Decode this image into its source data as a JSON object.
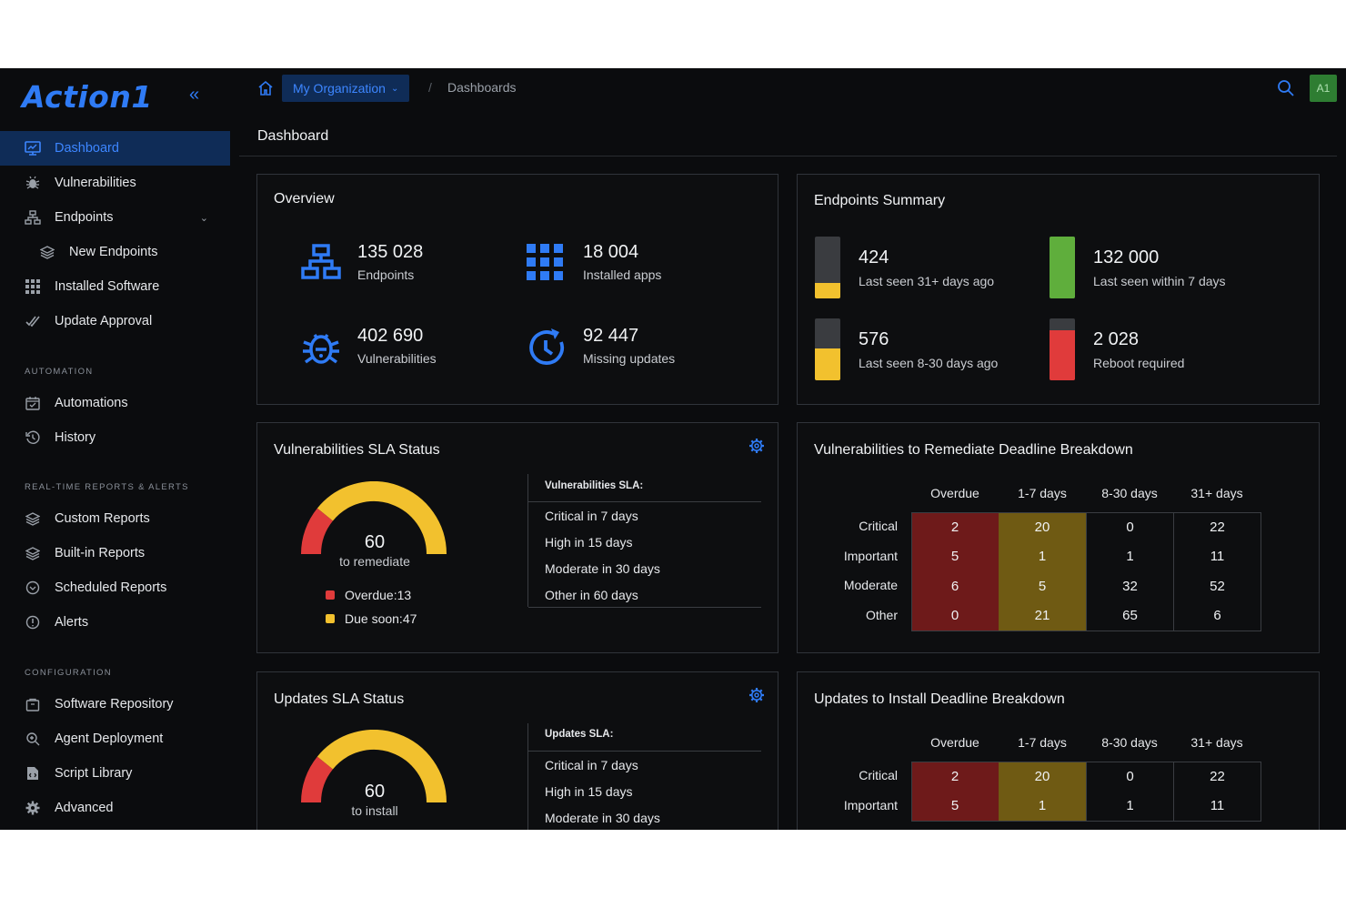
{
  "brand": {
    "logo_text": "Action1"
  },
  "topbar": {
    "org_label": "My Organization",
    "separator": "/",
    "current_page": "Dashboards",
    "avatar_initials": "A1"
  },
  "page_title": "Dashboard",
  "sidebar": {
    "items": [
      {
        "label": "Dashboard",
        "icon": "monitor-icon",
        "active": true
      },
      {
        "label": "Vulnerabilities",
        "icon": "bug-icon"
      },
      {
        "label": "Endpoints",
        "icon": "network-icon",
        "expandable": true
      },
      {
        "label": "New Endpoints",
        "icon": "layers-icon",
        "sub": true
      },
      {
        "label": "Installed Software",
        "icon": "grid-icon"
      },
      {
        "label": "Update Approval",
        "icon": "double-check-icon"
      }
    ],
    "automation_header": "AUTOMATION",
    "automation_items": [
      {
        "label": "Automations",
        "icon": "calendar-icon"
      },
      {
        "label": "History",
        "icon": "history-icon"
      }
    ],
    "reports_header": "REAL-TIME REPORTS & ALERTS",
    "reports_items": [
      {
        "label": "Custom Reports",
        "icon": "layers-icon"
      },
      {
        "label": "Built-in Reports",
        "icon": "layers-icon"
      },
      {
        "label": "Scheduled Reports",
        "icon": "clock-icon"
      },
      {
        "label": "Alerts",
        "icon": "alert-icon"
      }
    ],
    "config_header": "CONFIGURATION",
    "config_items": [
      {
        "label": "Software Repository",
        "icon": "bag-icon"
      },
      {
        "label": "Agent Deployment",
        "icon": "search-plus-icon"
      },
      {
        "label": "Script Library",
        "icon": "script-icon"
      },
      {
        "label": "Advanced",
        "icon": "gear-icon"
      }
    ]
  },
  "overview": {
    "title": "Overview",
    "metrics": [
      {
        "value": "135 028",
        "label": "Endpoints",
        "icon": "network-icon"
      },
      {
        "value": "18 004",
        "label": "Installed apps",
        "icon": "grid-icon"
      },
      {
        "value": "402 690",
        "label": "Vulnerabilities",
        "icon": "bug-icon"
      },
      {
        "value": "92 447",
        "label": "Missing updates",
        "icon": "refresh-clock-icon"
      }
    ]
  },
  "endpoints_summary": {
    "title": "Endpoints Summary",
    "items": [
      {
        "value": "424",
        "label": "Last seen 31+ days ago",
        "fill": 0.25,
        "color": "#f2c12e"
      },
      {
        "value": "132 000",
        "label": "Last seen within 7 days",
        "fill": 1.0,
        "color": "#5fae3c"
      },
      {
        "value": "576",
        "label": "Last seen 8-30 days ago",
        "fill": 0.52,
        "color": "#f2c12e"
      },
      {
        "value": "2 028",
        "label": "Reboot required",
        "fill": 0.81,
        "color": "#e03b3b"
      }
    ]
  },
  "vuln_sla": {
    "title": "Vulnerabilities SLA Status",
    "gauge_value": "60",
    "gauge_label": "to remediate",
    "overdue_fraction": 0.217,
    "legend": [
      {
        "label": "Overdue:",
        "value": "13",
        "color": "#e03b3b"
      },
      {
        "label": "Due soon:",
        "value": "47",
        "color": "#f2c12e"
      }
    ],
    "sla_header": "Vulnerabilities SLA:",
    "sla_rows": [
      "Critical in 7 days",
      "High in 15 days",
      "Moderate in 30 days",
      "Other in 60 days"
    ]
  },
  "vuln_breakdown": {
    "title": "Vulnerabilities to Remediate Deadline Breakdown",
    "columns": [
      "Overdue",
      "1-7 days",
      "8-30 days",
      "31+ days"
    ],
    "rows": [
      {
        "label": "Critical",
        "values": [
          "2",
          "20",
          "0",
          "22"
        ]
      },
      {
        "label": "Important",
        "values": [
          "5",
          "1",
          "1",
          "11"
        ]
      },
      {
        "label": "Moderate",
        "values": [
          "6",
          "5",
          "32",
          "52"
        ]
      },
      {
        "label": "Other",
        "values": [
          "0",
          "21",
          "65",
          "6"
        ]
      }
    ]
  },
  "updates_sla": {
    "title": "Updates SLA Status",
    "gauge_value": "60",
    "gauge_label": "to install",
    "overdue_fraction": 0.217,
    "sla_header": "Updates SLA:",
    "sla_rows": [
      "Critical in 7 days",
      "High in 15 days",
      "Moderate in 30 days"
    ]
  },
  "updates_breakdown": {
    "title": "Updates to Install Deadline Breakdown",
    "columns": [
      "Overdue",
      "1-7 days",
      "8-30 days",
      "31+ days"
    ],
    "rows": [
      {
        "label": "Critical",
        "values": [
          "2",
          "20",
          "0",
          "22"
        ]
      },
      {
        "label": "Important",
        "values": [
          "5",
          "1",
          "1",
          "11"
        ]
      }
    ]
  },
  "colors": {
    "accent": "#2f7bf5",
    "overdue": "#e03b3b",
    "due_soon": "#f2c12e",
    "ok": "#5fae3c"
  }
}
